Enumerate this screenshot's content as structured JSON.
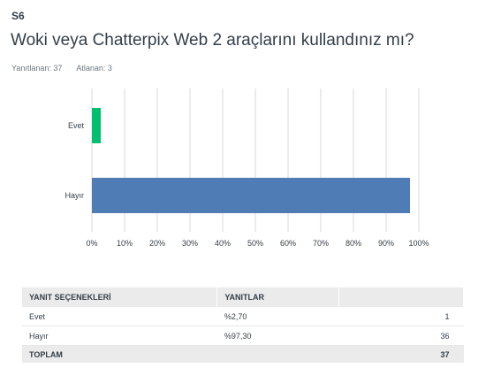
{
  "question": {
    "number": "S6",
    "title": "Woki veya Chatterpix Web 2 araçlarını kullandınız mı?"
  },
  "stats": {
    "answered": "Yanıtlanan: 37",
    "skipped": "Atlanan: 3"
  },
  "chart_data": {
    "type": "bar",
    "orientation": "horizontal",
    "categories": [
      "Evet",
      "Hayır"
    ],
    "values": [
      2.7,
      97.3
    ],
    "xlim": [
      0,
      100
    ],
    "xticks": [
      "0%",
      "10%",
      "20%",
      "30%",
      "40%",
      "50%",
      "60%",
      "70%",
      "80%",
      "90%",
      "100%"
    ],
    "colors": [
      "#00bf6f",
      "#507cb6"
    ],
    "grid": true,
    "title": "",
    "xlabel": "",
    "ylabel": ""
  },
  "table": {
    "headers": [
      "YANIT SEÇENEKLERİ",
      "YANITLAR",
      ""
    ],
    "rows": [
      {
        "label": "Evet",
        "percent": "%2,70",
        "count": "1"
      },
      {
        "label": "Hayır",
        "percent": "%97,30",
        "count": "36"
      }
    ],
    "total": {
      "label": "TOPLAM",
      "count": "37"
    }
  }
}
